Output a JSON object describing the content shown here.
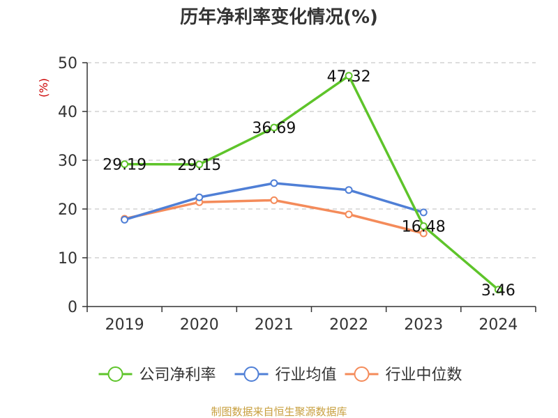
{
  "chart_data": {
    "type": "line",
    "title": "历年净利率变化情况(%)",
    "ylabel": "(%)",
    "xlabel": "",
    "categories": [
      "2019",
      "2020",
      "2021",
      "2022",
      "2023",
      "2024"
    ],
    "ylim": [
      0,
      50
    ],
    "yticks": [
      0,
      10,
      20,
      30,
      40,
      50
    ],
    "grid": true,
    "legend_position": "bottom",
    "series": [
      {
        "name": "公司净利率",
        "color": "#5ec42a",
        "values": [
          29.19,
          29.15,
          36.69,
          47.32,
          16.48,
          3.46
        ],
        "labels": [
          "29.19",
          "29.15",
          "36.69",
          "47.32",
          "16.48",
          "3.46"
        ]
      },
      {
        "name": "行业均值",
        "color": "#4f7fd6",
        "values": [
          17.8,
          22.4,
          25.3,
          23.9,
          19.3,
          null
        ]
      },
      {
        "name": "行业中位数",
        "color": "#f48b5a",
        "values": [
          18.0,
          21.4,
          21.8,
          18.9,
          15.0,
          null
        ]
      }
    ],
    "source": "制图数据来自恒生聚源数据库"
  }
}
